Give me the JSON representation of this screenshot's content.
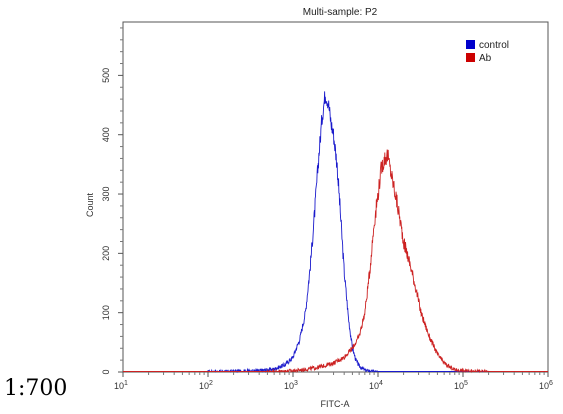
{
  "dilution_label": "1:700",
  "chart_data": {
    "type": "line",
    "title": "Multi-sample: P2",
    "xlabel": "FITC-A",
    "ylabel": "Count",
    "x_scale": "log",
    "xlim": [
      10,
      1000000
    ],
    "ylim": [
      0,
      590
    ],
    "x_ticks": [
      {
        "value": 10,
        "base": "10",
        "exp": "1"
      },
      {
        "value": 100,
        "base": "10",
        "exp": "2"
      },
      {
        "value": 1000,
        "base": "10",
        "exp": "3"
      },
      {
        "value": 10000,
        "base": "10",
        "exp": "4"
      },
      {
        "value": 100000,
        "base": "10",
        "exp": "5"
      },
      {
        "value": 1000000,
        "base": "10",
        "exp": "6"
      }
    ],
    "y_ticks": [
      0,
      100,
      200,
      300,
      400,
      500
    ],
    "legend": {
      "position": "top-right",
      "entries": [
        {
          "name": "control",
          "color": "#0000cc"
        },
        {
          "name": "Ab",
          "color": "#cc0000"
        }
      ]
    },
    "series": [
      {
        "name": "control",
        "color": "#1a1acc",
        "points": [
          [
            10,
            0
          ],
          [
            100,
            0
          ],
          [
            200,
            1
          ],
          [
            400,
            2
          ],
          [
            600,
            5
          ],
          [
            800,
            12
          ],
          [
            1000,
            25
          ],
          [
            1200,
            55
          ],
          [
            1400,
            100
          ],
          [
            1600,
            180
          ],
          [
            1800,
            270
          ],
          [
            2000,
            360
          ],
          [
            2200,
            430
          ],
          [
            2400,
            470
          ],
          [
            2600,
            455
          ],
          [
            2800,
            420
          ],
          [
            3000,
            400
          ],
          [
            3300,
            350
          ],
          [
            3600,
            270
          ],
          [
            4000,
            170
          ],
          [
            4500,
            90
          ],
          [
            5000,
            40
          ],
          [
            5500,
            20
          ],
          [
            6000,
            10
          ],
          [
            7000,
            3
          ],
          [
            8000,
            1
          ],
          [
            10000,
            0
          ],
          [
            100000,
            0
          ],
          [
            1000000,
            0
          ]
        ]
      },
      {
        "name": "Ab",
        "color": "#cc2222",
        "points": [
          [
            10,
            0
          ],
          [
            100,
            0
          ],
          [
            500,
            0
          ],
          [
            1000,
            2
          ],
          [
            1500,
            5
          ],
          [
            2000,
            8
          ],
          [
            3000,
            15
          ],
          [
            4000,
            25
          ],
          [
            5000,
            40
          ],
          [
            6000,
            60
          ],
          [
            7000,
            100
          ],
          [
            8000,
            170
          ],
          [
            9000,
            250
          ],
          [
            10000,
            300
          ],
          [
            11000,
            345
          ],
          [
            12000,
            360
          ],
          [
            13000,
            365
          ],
          [
            14000,
            340
          ],
          [
            16000,
            300
          ],
          [
            18000,
            260
          ],
          [
            20000,
            220
          ],
          [
            24000,
            180
          ],
          [
            28000,
            140
          ],
          [
            32000,
            100
          ],
          [
            40000,
            60
          ],
          [
            50000,
            30
          ],
          [
            60000,
            15
          ],
          [
            70000,
            8
          ],
          [
            80000,
            4
          ],
          [
            100000,
            2
          ],
          [
            150000,
            1
          ],
          [
            200000,
            0
          ],
          [
            1000000,
            0
          ]
        ]
      }
    ]
  }
}
